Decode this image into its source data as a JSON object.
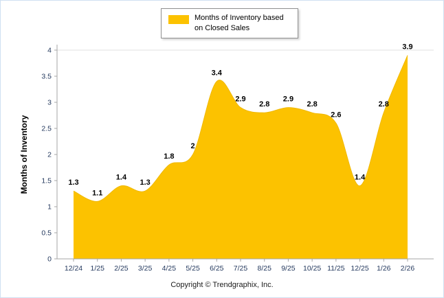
{
  "chart_data": {
    "type": "area",
    "title": "",
    "categories": [
      "12/24",
      "1/25",
      "2/25",
      "3/25",
      "4/25",
      "5/25",
      "6/25",
      "7/25",
      "8/25",
      "9/25",
      "10/25",
      "11/25",
      "12/25",
      "1/26",
      "2/26"
    ],
    "values": [
      1.3,
      1.1,
      1.4,
      1.3,
      1.8,
      2,
      3.4,
      2.9,
      2.8,
      2.9,
      2.8,
      2.6,
      1.4,
      2.8,
      3.9
    ],
    "xlabel": "",
    "ylabel": "Months of Inventory",
    "ylim": [
      0,
      4
    ],
    "yticks": [
      0,
      0.5,
      1,
      1.5,
      2,
      2.5,
      3,
      3.5,
      4
    ],
    "legend": "Months of Inventory based on Closed Sales",
    "legend_position": "top",
    "grid": false,
    "fill_color": "#FCC200",
    "edge_color": "#F0B800"
  },
  "colors": {
    "axis": "#a6a6a6",
    "tick_label": "#24395e",
    "data_label": "#000000",
    "gridline": "#e0e0e0"
  },
  "footer": {
    "copyright": "Copyright © Trendgraphix, Inc."
  }
}
